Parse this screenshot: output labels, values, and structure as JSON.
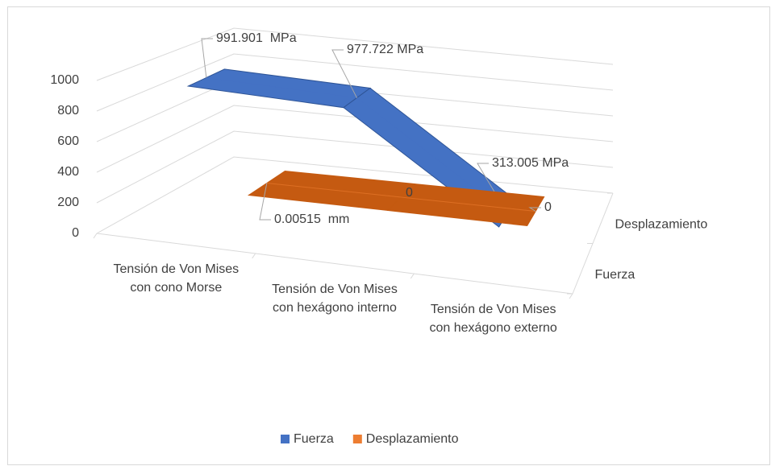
{
  "chart_data": {
    "type": "line",
    "categories": [
      "Tensión de Von Mises con cono Morse",
      "Tensión de Von Mises con hexágono interno",
      "Tensión de Von Mises con hexágono externo"
    ],
    "series": [
      {
        "name": "Fuerza",
        "color": "#4472c4",
        "values": [
          991.901,
          977.722,
          313.005
        ],
        "value_labels": [
          "991.901  MPa",
          "977.722 MPa",
          "313.005 MPa"
        ]
      },
      {
        "name": "Desplazamiento",
        "color": "#ed7d31",
        "values": [
          0.00515,
          0,
          0
        ],
        "value_labels": [
          "0.00515  mm",
          "0",
          "0"
        ]
      }
    ],
    "ylim": [
      0,
      1000
    ],
    "yticks": [
      0,
      200,
      400,
      600,
      800,
      1000
    ],
    "grid": true,
    "legend": "bottom"
  }
}
